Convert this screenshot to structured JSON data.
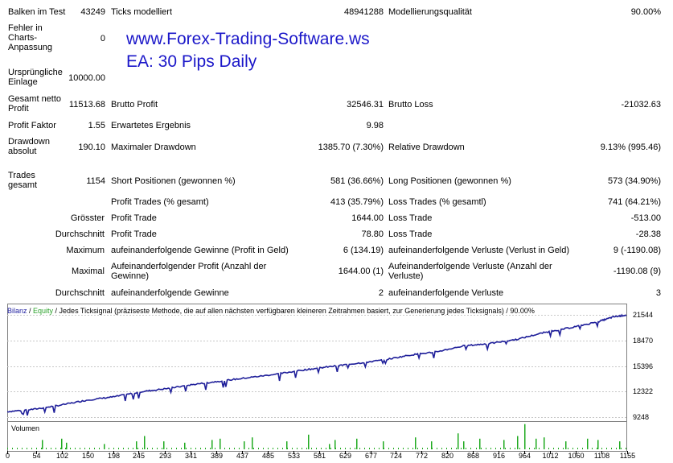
{
  "report": {
    "bars_label": "Balken im Test",
    "bars_value": "43249",
    "ticks_label": "Ticks modelliert",
    "ticks_value": "48941288",
    "quality_label": "Modellierungsqualität",
    "quality_value": "90.00%",
    "errors_label": "Fehler in Charts-Anpassung",
    "errors_value": "0",
    "initial_label": "Ursprüngliche Einlage",
    "initial_value": "10000.00",
    "net_label": "Gesamt netto Profit",
    "net_value": "11513.68",
    "gross_profit_label": "Brutto Profit",
    "gross_profit_value": "32546.31",
    "gross_loss_label": "Brutto Loss",
    "gross_loss_value": "-21032.63",
    "pf_label": "Profit Faktor",
    "pf_value": "1.55",
    "expected_label": "Erwartetes Ergebnis",
    "expected_value": "9.98",
    "dd_abs_label": "Drawdown absolut",
    "dd_abs_value": "190.10",
    "dd_max_label": "Maximaler Drawdown",
    "dd_max_value": "1385.70 (7.30%)",
    "dd_rel_label": "Relative Drawdown",
    "dd_rel_value": "9.13% (995.46)",
    "trades_label": "Trades gesamt",
    "trades_value": "1154",
    "short_label": "Short Positionen (gewonnen %)",
    "short_value": "581 (36.66%)",
    "long_label": "Long Positionen (gewonnen %)",
    "long_value": "573 (34.90%)",
    "profit_trades_label": "Profit Trades (% gesamt)",
    "profit_trades_value": "413 (35.79%)",
    "loss_trades_label": "Loss Trades (% gesamtl)",
    "loss_trades_value": "741 (64.21%)",
    "largest_label": "Grösster",
    "largest_profit_label": "Profit Trade",
    "largest_profit_value": "1644.00",
    "largest_loss_label": "Loss Trade",
    "largest_loss_value": "-513.00",
    "average_label": "Durchschnitt",
    "avg_profit_label": "Profit Trade",
    "avg_profit_value": "78.80",
    "avg_loss_label": "Loss Trade",
    "avg_loss_value": "-28.38",
    "maximum_label": "Maximum",
    "max_consec_wins_label": "aufeinanderfolgende Gewinne (Profit in Geld)",
    "max_consec_wins_value": "6 (134.19)",
    "max_consec_losses_label": "aufeinanderfolgende Verluste (Verlust in Geld)",
    "max_consec_losses_value": "9 (-1190.08)",
    "maximal_label": "Maximal",
    "maximal_profit_label": "Aufeinanderfolgender Profit (Anzahl der Gewinne)",
    "maximal_profit_value": "1644.00 (1)",
    "maximal_loss_label": "Aufeinanderfolgende Verluste (Anzahl der Verluste)",
    "maximal_loss_value": "-1190.08 (9)",
    "average2_label": "Durchschnitt",
    "avg_consec_wins_label": "aufeinanderfolgende Gewinne",
    "avg_consec_wins_value": "2",
    "avg_consec_losses_label": "aufeinanderfolgende Verluste",
    "avg_consec_losses_value": "3"
  },
  "watermark": {
    "line1": "www.Forex-Trading-Software.ws",
    "line2": "EA: 30 Pips Daily"
  },
  "chart_header": {
    "balance": "Bilanz",
    "slash": " / ",
    "equity": "Equity",
    "rest": " / Jedes  Ticksignal (präziseste Methode, die auf allen nächsten verfügbaren kleineren Zeitrahmen basiert, zur Generierung jedes Ticksignals) / 90.00%"
  },
  "volume_label": "Volumen",
  "colors": {
    "balance": "#1f1f9a",
    "equity": "#2aa12a",
    "volume": "#1faa1f",
    "watermark": "#1b17c9"
  },
  "chart_data": {
    "type": "line",
    "series": [
      {
        "name": "Bilanz"
      }
    ],
    "y_ticks": [
      9248,
      12322,
      15396,
      18470,
      21544
    ],
    "x_ticks": [
      0,
      54,
      102,
      150,
      198,
      245,
      293,
      341,
      389,
      437,
      485,
      533,
      581,
      629,
      677,
      724,
      772,
      820,
      868,
      916,
      964,
      1012,
      1060,
      1108,
      1155
    ],
    "ylim": [
      9248,
      21544
    ],
    "xlim": [
      0,
      1154
    ],
    "balance_points": [
      [
        0,
        9900
      ],
      [
        50,
        10200
      ],
      [
        100,
        10700
      ],
      [
        150,
        11300
      ],
      [
        200,
        11700
      ],
      [
        250,
        12300
      ],
      [
        300,
        12700
      ],
      [
        350,
        13200
      ],
      [
        400,
        13600
      ],
      [
        450,
        14000
      ],
      [
        500,
        14400
      ],
      [
        550,
        14900
      ],
      [
        600,
        15300
      ],
      [
        650,
        15700
      ],
      [
        700,
        16100
      ],
      [
        750,
        16700
      ],
      [
        800,
        17100
      ],
      [
        850,
        17800
      ],
      [
        900,
        18100
      ],
      [
        950,
        18600
      ],
      [
        1000,
        19400
      ],
      [
        1050,
        20000
      ],
      [
        1100,
        20700
      ],
      [
        1130,
        21300
      ],
      [
        1154,
        21522
      ]
    ],
    "volume_spike_trades": [
      65,
      100,
      110,
      180,
      240,
      255,
      290,
      330,
      380,
      395,
      440,
      455,
      520,
      560,
      600,
      610,
      650,
      700,
      760,
      790,
      840,
      850,
      880,
      925,
      950,
      963,
      985,
      1000,
      1040,
      1080,
      1100,
      1140
    ],
    "volume_spike_height": [
      0.35,
      0.4,
      0.25,
      0.2,
      0.3,
      0.5,
      0.3,
      0.25,
      0.35,
      0.4,
      0.3,
      0.45,
      0.3,
      0.55,
      0.2,
      0.35,
      0.4,
      0.3,
      0.45,
      0.3,
      0.6,
      0.3,
      0.4,
      0.35,
      0.5,
      0.95,
      0.4,
      0.45,
      0.3,
      0.4,
      0.35,
      0.3
    ]
  }
}
